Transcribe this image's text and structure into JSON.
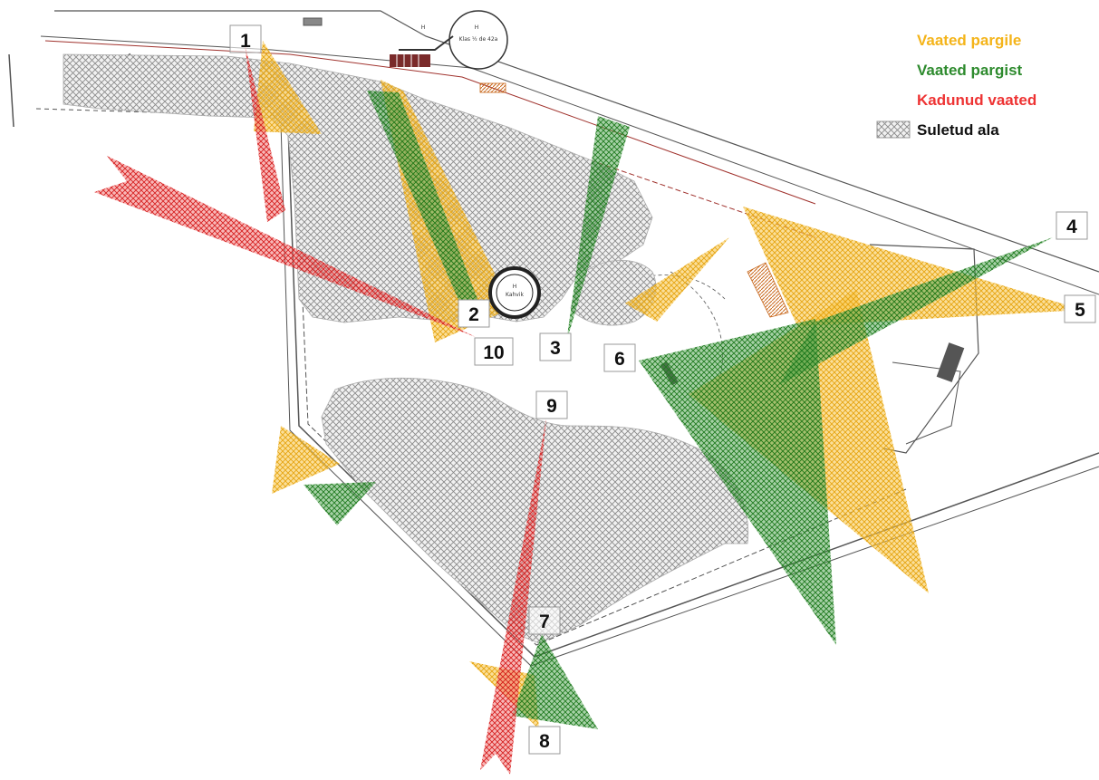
{
  "legend": {
    "items": [
      {
        "label": "Vaated pargile",
        "color": "#f4b41a"
      },
      {
        "label": "Vaated pargist",
        "color": "#2e8b2e"
      },
      {
        "label": "Kadunud vaated",
        "color": "#ee3333"
      },
      {
        "label": "Suletud ala",
        "color": "#9a9a9a"
      }
    ]
  },
  "viewpoints": [
    "1",
    "2",
    "3",
    "4",
    "5",
    "6",
    "7",
    "8",
    "9",
    "10"
  ],
  "plan_text": {
    "building_top_letter": "H",
    "building_top_note": "Klas ½ de 42a",
    "building_small_text": "H",
    "building_center_letter": "H",
    "building_center_note": "Kahvik"
  },
  "colors": {
    "view_to_park": "#f4b41a",
    "view_from_park": "#2e8b2e",
    "lost_view": "#ee3333",
    "closed_area": "#9a9a9a",
    "plan_lines": "#555555",
    "plan_red": "#a0322d",
    "plan_orange": "#c8661a"
  }
}
